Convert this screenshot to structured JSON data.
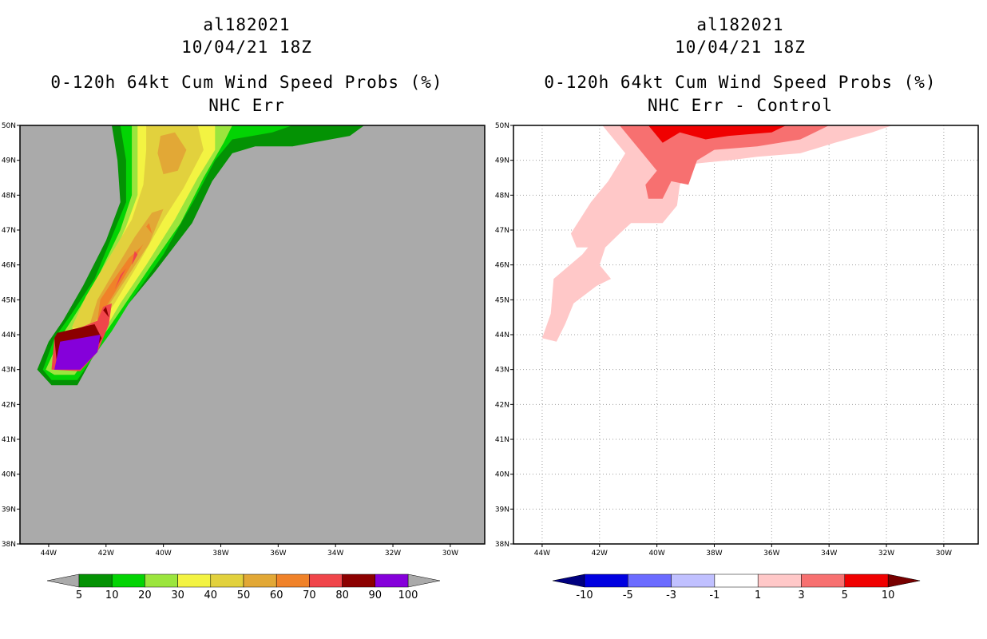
{
  "chart_data": [
    {
      "type": "heatmap",
      "storm_id": "al182021",
      "datetime": "10/04/21 18Z",
      "title": "0-120h 64kt Cum Wind Speed Probs (%)",
      "subtitle": "NHC Err",
      "xlim": [
        -45,
        -28.8
      ],
      "ylim": [
        38,
        50
      ],
      "x_ticks": [
        "44W",
        "42W",
        "40W",
        "38W",
        "36W",
        "34W",
        "32W",
        "30W"
      ],
      "y_ticks": [
        "38N",
        "39N",
        "40N",
        "41N",
        "42N",
        "43N",
        "44N",
        "45N",
        "46N",
        "47N",
        "48N",
        "49N",
        "50N"
      ],
      "grid": false,
      "land_color": "#aaaaaa",
      "colorbar": {
        "labels": [
          "5",
          "10",
          "20",
          "30",
          "40",
          "50",
          "60",
          "70",
          "80",
          "90",
          "100"
        ],
        "colors": [
          "#049204",
          "#03d404",
          "#9be53d",
          "#f3f342",
          "#e2d13d",
          "#e2a836",
          "#f08229",
          "#f0454a",
          "#8c0000",
          "#8500da"
        ],
        "extend_left_color": "#aaaaaa",
        "extend_right_color": "#aaaaaa"
      },
      "regions": [
        {
          "level": "5-10",
          "color": "#049204",
          "points": [
            [
              -41.8,
              50
            ],
            [
              -33,
              50
            ],
            [
              -33.5,
              49.7
            ],
            [
              -35.5,
              49.4
            ],
            [
              -36.8,
              49.4
            ],
            [
              -37.6,
              49.2
            ],
            [
              -38.3,
              48.4
            ],
            [
              -39,
              47.2
            ],
            [
              -40.3,
              45.8
            ],
            [
              -41.6,
              44.5
            ],
            [
              -42.2,
              43.8
            ],
            [
              -42.5,
              43.3
            ],
            [
              -43,
              42.55
            ],
            [
              -43.9,
              42.55
            ],
            [
              -44.4,
              43
            ],
            [
              -44.0,
              43.8
            ],
            [
              -43.5,
              44.4
            ],
            [
              -42.8,
              45.4
            ],
            [
              -42,
              46.7
            ],
            [
              -41.5,
              47.8
            ],
            [
              -41.6,
              49
            ]
          ]
        },
        {
          "level": "10-20",
          "color": "#03d404",
          "points": [
            [
              -41.5,
              50
            ],
            [
              -35.5,
              50
            ],
            [
              -36.2,
              49.8
            ],
            [
              -37.6,
              49.6
            ],
            [
              -38.2,
              49
            ],
            [
              -38.9,
              47.9
            ],
            [
              -40,
              46.3
            ],
            [
              -41.2,
              44.9
            ],
            [
              -41.8,
              44.1
            ],
            [
              -42.5,
              43.3
            ],
            [
              -43,
              42.7
            ],
            [
              -43.9,
              42.7
            ],
            [
              -44.2,
              43
            ],
            [
              -43.8,
              43.9
            ],
            [
              -43.2,
              44.6
            ],
            [
              -42.4,
              45.6
            ],
            [
              -41.8,
              46.8
            ],
            [
              -41.3,
              47.8
            ],
            [
              -41.3,
              49
            ]
          ]
        },
        {
          "level": "20-30",
          "color": "#9be53d",
          "points": [
            [
              -41.1,
              50
            ],
            [
              -37.6,
              50
            ],
            [
              -37.9,
              49.5
            ],
            [
              -38.6,
              48.5
            ],
            [
              -39.4,
              47.2
            ],
            [
              -40.5,
              45.9
            ],
            [
              -41.4,
              44.8
            ],
            [
              -41.9,
              44.2
            ],
            [
              -42.6,
              43.4
            ],
            [
              -43.1,
              42.85
            ],
            [
              -43.8,
              42.85
            ],
            [
              -44.1,
              43
            ],
            [
              -43.6,
              43.9
            ],
            [
              -42.9,
              44.8
            ],
            [
              -42.2,
              45.8
            ],
            [
              -41.5,
              47
            ],
            [
              -41.1,
              48
            ],
            [
              -41.1,
              49
            ]
          ]
        },
        {
          "level": "30-40",
          "color": "#f3f342",
          "points": [
            [
              -40.9,
              50
            ],
            [
              -38.2,
              50
            ],
            [
              -38.2,
              49.3
            ],
            [
              -38.8,
              48.5
            ],
            [
              -39.6,
              47.3
            ],
            [
              -40.6,
              46
            ],
            [
              -41.5,
              44.9
            ],
            [
              -42,
              44.2
            ],
            [
              -42.7,
              43.5
            ],
            [
              -43.2,
              43.0
            ],
            [
              -43.9,
              43.0
            ],
            [
              -43.3,
              44
            ],
            [
              -42.6,
              44.9
            ],
            [
              -41.9,
              46
            ],
            [
              -41.3,
              47.1
            ],
            [
              -40.9,
              48
            ],
            [
              -40.9,
              49
            ]
          ]
        },
        {
          "level": "40-50",
          "color": "#e2d13d",
          "points": [
            [
              -40.6,
              50
            ],
            [
              -38.8,
              50
            ],
            [
              -38.6,
              49.3
            ],
            [
              -39.3,
              48.2
            ],
            [
              -40,
              47.3
            ],
            [
              -40.9,
              46
            ],
            [
              -41.7,
              44.9
            ],
            [
              -42.3,
              44.2
            ],
            [
              -43.2,
              44.2
            ],
            [
              -42.7,
              45.1
            ],
            [
              -41.9,
              46.2
            ],
            [
              -41.1,
              47.3
            ],
            [
              -40.7,
              48.3
            ],
            [
              -40.6,
              49.3
            ]
          ]
        },
        {
          "level": "50-60",
          "color": "#e2a836",
          "points": [
            [
              -40.1,
              49.7
            ],
            [
              -39.6,
              49.8
            ],
            [
              -39.2,
              49.3
            ],
            [
              -39.5,
              48.7
            ],
            [
              -40.0,
              48.6
            ],
            [
              -40.2,
              49.2
            ]
          ]
        },
        {
          "level": "50-60",
          "color": "#e2a836",
          "points": [
            [
              -40.0,
              47.6
            ],
            [
              -40.5,
              46.6
            ],
            [
              -41.3,
              45.6
            ],
            [
              -42.1,
              44.6
            ],
            [
              -42.6,
              44.2
            ],
            [
              -42.3,
              45.0
            ],
            [
              -41.8,
              45.7
            ],
            [
              -41.0,
              46.8
            ],
            [
              -40.4,
              47.5
            ]
          ]
        },
        {
          "level": "60-70",
          "color": "#f08229",
          "points": [
            [
              -40.7,
              46.6
            ],
            [
              -41.4,
              45.6
            ],
            [
              -42,
              44.8
            ],
            [
              -42.3,
              44.4
            ],
            [
              -42.2,
              45.0
            ],
            [
              -41.8,
              45.5
            ],
            [
              -41.2,
              46.2
            ],
            [
              -40.8,
              46.5
            ]
          ]
        },
        {
          "level": "60-70",
          "color": "#f08229",
          "points": [
            [
              -40.6,
              47.1
            ],
            [
              -40.4,
              46.9
            ],
            [
              -40.5,
              47.2
            ]
          ]
        },
        {
          "level": "70-80",
          "color": "#f0454a",
          "points": [
            [
              -43.9,
              43.0
            ],
            [
              -43.8,
              43.9
            ],
            [
              -42.9,
              44.2
            ],
            [
              -42.3,
              44.4
            ],
            [
              -42.1,
              44.8
            ],
            [
              -41.8,
              44.9
            ],
            [
              -41.9,
              44.3
            ],
            [
              -42.3,
              43.5
            ],
            [
              -42.9,
              42.95
            ]
          ]
        },
        {
          "level": "70-80",
          "color": "#f0454a",
          "points": [
            [
              -41.3,
              45.9
            ],
            [
              -41.7,
              45.3
            ],
            [
              -41.5,
              45.7
            ]
          ]
        },
        {
          "level": "70-80",
          "color": "#f0454a",
          "points": [
            [
              -40.9,
              46.3
            ],
            [
              -41.1,
              46.0
            ],
            [
              -41.0,
              46.4
            ]
          ]
        },
        {
          "level": "80-90",
          "color": "#8c0000",
          "points": [
            [
              -43.8,
              43.9
            ],
            [
              -43.7,
              44.05
            ],
            [
              -42.4,
              44.3
            ],
            [
              -42.15,
              43.9
            ],
            [
              -42.4,
              43.5
            ],
            [
              -42.9,
              43.05
            ],
            [
              -43.7,
              43.05
            ]
          ]
        },
        {
          "level": "80-90",
          "color": "#8c0000",
          "points": [
            [
              -42.1,
              44.7
            ],
            [
              -41.9,
              44.5
            ],
            [
              -42.0,
              44.8
            ]
          ]
        },
        {
          "level": "90-100",
          "color": "#8500da",
          "points": [
            [
              -43.8,
              43.0
            ],
            [
              -43.6,
              43.8
            ],
            [
              -42.2,
              44.0
            ],
            [
              -42.3,
              43.5
            ],
            [
              -42.9,
              43.0
            ]
          ]
        }
      ]
    },
    {
      "type": "heatmap",
      "storm_id": "al182021",
      "datetime": "10/04/21 18Z",
      "title": "0-120h 64kt Cum Wind Speed Probs (%)",
      "subtitle": "NHC Err - Control",
      "xlim": [
        -45,
        -28.8
      ],
      "ylim": [
        38,
        50
      ],
      "x_ticks": [
        "44W",
        "42W",
        "40W",
        "38W",
        "36W",
        "34W",
        "32W",
        "30W"
      ],
      "y_ticks": [
        "38N",
        "39N",
        "40N",
        "41N",
        "42N",
        "43N",
        "44N",
        "45N",
        "46N",
        "47N",
        "48N",
        "49N",
        "50N"
      ],
      "grid": true,
      "colorbar": {
        "labels": [
          "-10",
          "-5",
          "-3",
          "-1",
          "1",
          "3",
          "5",
          "10"
        ],
        "colors": [
          "#0000e0",
          "#6b6bff",
          "#c0c0ff",
          "#ffffff",
          "#ffc8c8",
          "#f77070",
          "#f00000"
        ],
        "extend_left_color": "#000080",
        "extend_right_color": "#780000"
      },
      "regions": [
        {
          "level": "1-3",
          "color": "#ffc8c8",
          "points": [
            [
              -41.9,
              50
            ],
            [
              -31.8,
              50
            ],
            [
              -32.5,
              49.8
            ],
            [
              -33.8,
              49.5
            ],
            [
              -35,
              49.2
            ],
            [
              -36.5,
              49.1
            ],
            [
              -37.5,
              49.0
            ],
            [
              -38.7,
              48.9
            ],
            [
              -39.2,
              48.3
            ],
            [
              -39.3,
              47.7
            ],
            [
              -39.8,
              47.2
            ],
            [
              -40.9,
              47.2
            ],
            [
              -41.3,
              46.9
            ],
            [
              -41.8,
              46.5
            ],
            [
              -42.0,
              46.0
            ],
            [
              -41.6,
              45.6
            ],
            [
              -42.1,
              45.4
            ],
            [
              -42.9,
              44.9
            ],
            [
              -43.2,
              44.3
            ],
            [
              -43.5,
              43.8
            ],
            [
              -44.0,
              43.9
            ],
            [
              -43.7,
              44.6
            ],
            [
              -43.6,
              45.6
            ],
            [
              -42.6,
              46.3
            ],
            [
              -42.4,
              46.5
            ],
            [
              -42.8,
              46.5
            ],
            [
              -43.0,
              46.9
            ],
            [
              -42.3,
              47.8
            ],
            [
              -41.7,
              48.4
            ],
            [
              -41.1,
              49.2
            ]
          ]
        },
        {
          "level": "3-5",
          "color": "#f77070",
          "points": [
            [
              -41.3,
              50
            ],
            [
              -34.0,
              50
            ],
            [
              -35,
              49.6
            ],
            [
              -36.5,
              49.4
            ],
            [
              -38.0,
              49.3
            ],
            [
              -38.6,
              49.0
            ],
            [
              -38.9,
              48.3
            ],
            [
              -39.5,
              48.4
            ],
            [
              -39.8,
              47.9
            ],
            [
              -40.3,
              47.9
            ],
            [
              -40.4,
              48.3
            ],
            [
              -40.0,
              48.7
            ],
            [
              -40.5,
              49.2
            ]
          ]
        },
        {
          "level": "5-10",
          "color": "#f00000",
          "points": [
            [
              -40.3,
              50
            ],
            [
              -35.5,
              50
            ],
            [
              -36.0,
              49.8
            ],
            [
              -37.5,
              49.7
            ],
            [
              -38.3,
              49.6
            ],
            [
              -39.2,
              49.8
            ],
            [
              -39.8,
              49.5
            ]
          ]
        }
      ]
    }
  ]
}
